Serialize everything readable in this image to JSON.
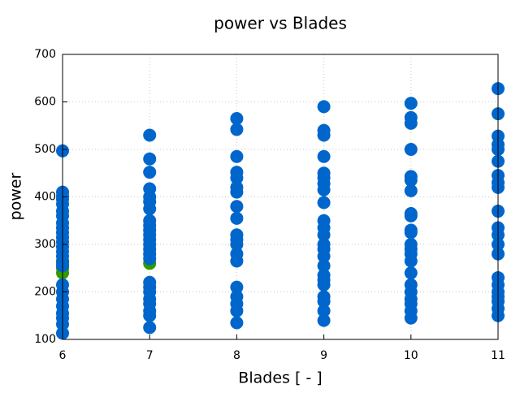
{
  "chart_data": {
    "type": "scatter",
    "title": "power vs Blades",
    "x_label": "Blades [ - ]",
    "y_label": "power",
    "xlim": [
      6,
      11
    ],
    "ylim": [
      100,
      700
    ],
    "xticks": [
      6,
      7,
      8,
      9,
      10,
      11
    ],
    "yticks": [
      100,
      200,
      300,
      400,
      500,
      600,
      700
    ],
    "grid": true,
    "series": [
      {
        "color": "#339900",
        "x": [
          6,
          6,
          6,
          7
        ],
        "values": [
          240,
          250,
          260,
          260
        ]
      },
      {
        "color": "#0066cc",
        "x": [
          6,
          6,
          6,
          6,
          6,
          6,
          6,
          6,
          6,
          6,
          6,
          6,
          6,
          6,
          6,
          6,
          6,
          6,
          6,
          6,
          6,
          6,
          6,
          6,
          6,
          7,
          7,
          7,
          7,
          7,
          7,
          7,
          7,
          7,
          7,
          7,
          7,
          7,
          7,
          7,
          7,
          7,
          7,
          7,
          7,
          7,
          7,
          7,
          7,
          8,
          8,
          8,
          8,
          8,
          8,
          8,
          8,
          8,
          8,
          8,
          8,
          8,
          8,
          8,
          8,
          8,
          8,
          8,
          9,
          9,
          9,
          9,
          9,
          9,
          9,
          9,
          9,
          9,
          9,
          9,
          9,
          9,
          9,
          9,
          9,
          9,
          9,
          9,
          9,
          9,
          9,
          10,
          10,
          10,
          10,
          10,
          10,
          10,
          10,
          10,
          10,
          10,
          10,
          10,
          10,
          10,
          10,
          10,
          10,
          10,
          10,
          10,
          10,
          11,
          11,
          11,
          11,
          11,
          11,
          11,
          11,
          11,
          11,
          11,
          11,
          11,
          11,
          11,
          11,
          11,
          11,
          11,
          11,
          11
        ],
        "values": [
          497,
          410,
          402,
          395,
          385,
          370,
          360,
          345,
          335,
          325,
          315,
          305,
          295,
          285,
          275,
          265,
          255,
          215,
          200,
          185,
          170,
          155,
          145,
          132,
          113,
          530,
          480,
          452,
          417,
          400,
          390,
          375,
          350,
          340,
          330,
          320,
          310,
          300,
          290,
          280,
          270,
          220,
          210,
          200,
          185,
          175,
          160,
          150,
          125,
          565,
          542,
          485,
          452,
          440,
          420,
          410,
          380,
          355,
          320,
          310,
          300,
          280,
          265,
          210,
          190,
          175,
          160,
          135,
          590,
          540,
          530,
          485,
          450,
          440,
          428,
          415,
          388,
          350,
          335,
          320,
          300,
          290,
          275,
          255,
          235,
          225,
          215,
          190,
          180,
          160,
          140,
          597,
          567,
          555,
          500,
          443,
          435,
          413,
          365,
          360,
          330,
          325,
          300,
          290,
          280,
          265,
          240,
          215,
          200,
          185,
          175,
          160,
          145,
          628,
          575,
          528,
          510,
          500,
          475,
          445,
          430,
          420,
          370,
          335,
          320,
          300,
          280,
          230,
          215,
          200,
          190,
          180,
          165,
          150
        ]
      }
    ]
  }
}
